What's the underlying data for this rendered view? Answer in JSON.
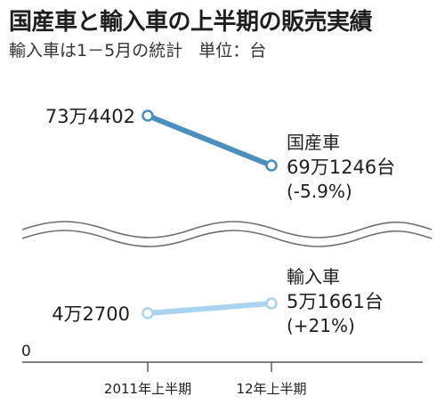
{
  "title": "国産車と輸入車の上半期の販売実績",
  "subtitle": "輸入車は1－5月の統計",
  "unit_note": "単位：台",
  "chart_data": {
    "type": "line",
    "categories": [
      "2011年上半期",
      "12年上半期"
    ],
    "axis_zero_label": "0",
    "series": [
      {
        "name": "国産車",
        "values": [
          734402,
          691246
        ],
        "value_labels": [
          "73万4402",
          "69万1246台"
        ],
        "change_label": "(-5.9%)",
        "color": "#4a8fbe"
      },
      {
        "name": "輸入車",
        "values": [
          42700,
          51661
        ],
        "value_labels": [
          "4万2700",
          "5万1661台"
        ],
        "change_label": "(+21%)",
        "color": "#a9d3ef"
      }
    ],
    "axis_break": true
  }
}
